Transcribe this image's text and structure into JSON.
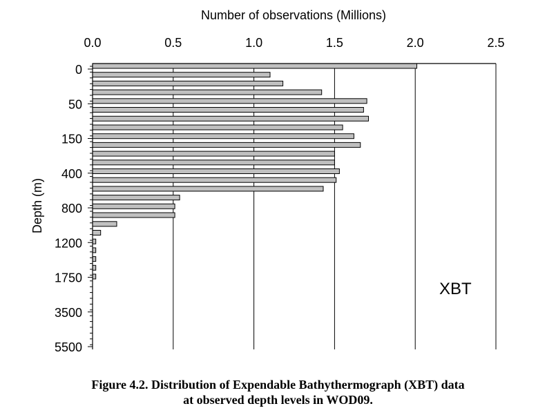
{
  "chart_data": {
    "type": "bar",
    "orientation": "horizontal",
    "xlabel": "Number of observations (Millions)",
    "ylabel": "Depth (m)",
    "x_axis_position": "top",
    "xlim": [
      0,
      2.5
    ],
    "x_ticks": [
      "0.0",
      "0.5",
      "1.0",
      "1.5",
      "2.0",
      "2.5"
    ],
    "y_tick_labels": [
      "0",
      "50",
      "150",
      "400",
      "800",
      "1200",
      "1750",
      "3500",
      "5500"
    ],
    "grid": "vertical",
    "annotation": "XBT",
    "bar_color": "#c0c0c0",
    "values": [
      2.01,
      1.1,
      1.18,
      1.42,
      1.7,
      1.68,
      1.71,
      1.55,
      1.62,
      1.66,
      1.5,
      1.5,
      1.53,
      1.51,
      1.43,
      0.54,
      0.51,
      0.51,
      0.15,
      0.05,
      0.02,
      0.02,
      0.02,
      0.02,
      0.02
    ]
  },
  "caption": {
    "line1": "Figure 4.2. Distribution of Expendable Bathythermograph (XBT) data",
    "line2": "at observed depth levels in WOD09."
  }
}
